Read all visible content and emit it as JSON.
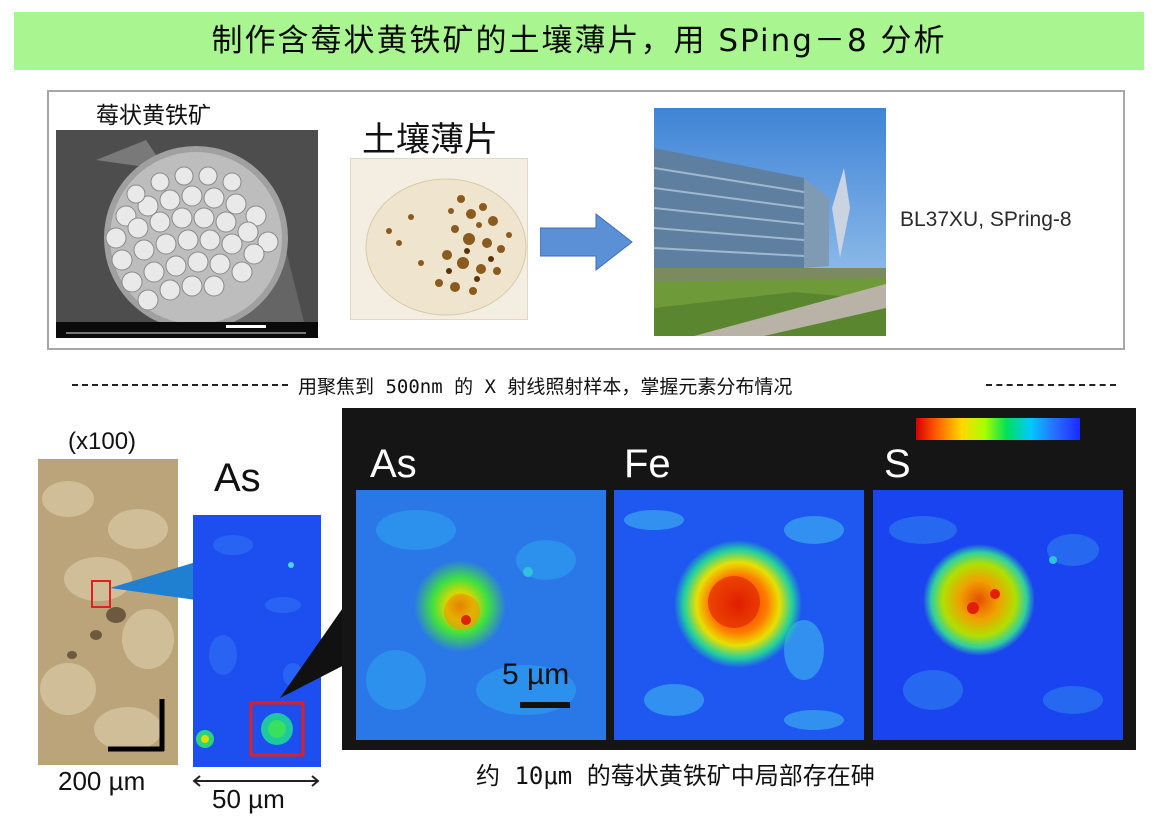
{
  "title": "制作含莓状黄铁矿的土壤薄片，用 SPing－8 分析",
  "top_panel": {
    "sem_label": "莓状黄铁矿",
    "thin_section_label": "土壤薄片",
    "beamline_label": "BL37XU, SPring-8"
  },
  "separator_caption": "用聚焦到 500nm 的 X 射线照射样本，掌握元素分布情况",
  "bottom_panel": {
    "magnification_label": "(x100)",
    "micrograph_scale_label": "200 µm",
    "as_overview_label": "As",
    "overview_scale_label": "50 µm",
    "maps": [
      {
        "element": "As"
      },
      {
        "element": "Fe"
      },
      {
        "element": "S"
      }
    ],
    "map_scale_label": "5 µm",
    "colorbar_colors": [
      "#d40000",
      "#ff5a00",
      "#ffd800",
      "#a8ff00",
      "#00e05a",
      "#00c8ff",
      "#2a6cff",
      "#1a2aff"
    ]
  },
  "bottom_caption": "约 10μm 的莓状黄铁矿中局部存在砷",
  "colors": {
    "title_bg": "#a9f590",
    "map_background_blue": "#1d4ff0",
    "dark_panel": "#151515",
    "highlight_box": "#e02020",
    "connector_blue": "#1f7fd0"
  }
}
